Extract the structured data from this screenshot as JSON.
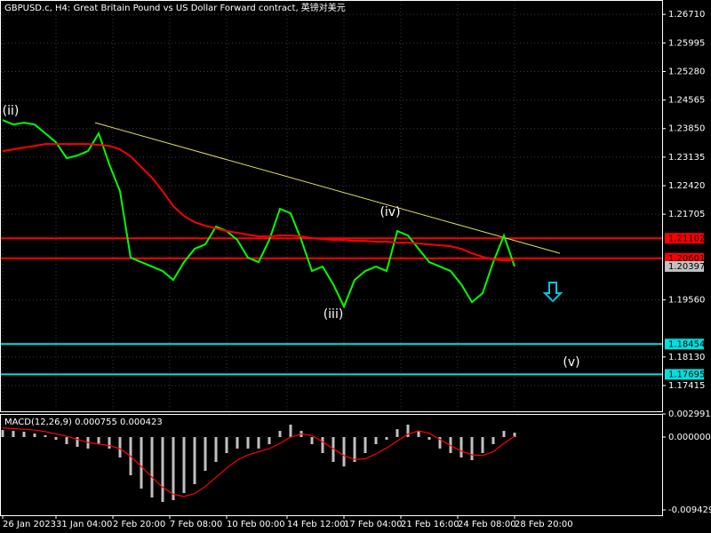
{
  "chart_data": [
    {
      "type": "line",
      "title": "GBPUSD.c, H4:  Great Britain Pound vs US Dollar Forward contract, 英镑对美元",
      "x": [
        0,
        3,
        6,
        9,
        12,
        15,
        18,
        21,
        24,
        27,
        30,
        33,
        36,
        39,
        42,
        45,
        48,
        51,
        54,
        57,
        60,
        63,
        66,
        69,
        72,
        75,
        78,
        81,
        84,
        87,
        90,
        93,
        96,
        99,
        102,
        105,
        108,
        111,
        114,
        117,
        120,
        123,
        126,
        129,
        132,
        135,
        138,
        141,
        144
      ],
      "series": [
        {
          "color": "#00ff00",
          "values": [
            1.24063,
            1.23952,
            1.23997,
            1.23952,
            1.2373,
            1.23507,
            1.23107,
            1.23174,
            1.23285,
            1.2373,
            1.22951,
            1.22284,
            1.20616,
            1.20505,
            1.20394,
            1.20283,
            1.2006,
            1.20505,
            1.20839,
            1.2095,
            1.21395,
            1.21283,
            1.21061,
            1.20616,
            1.20505,
            1.21061,
            1.21839,
            1.21728,
            1.21061,
            1.20283,
            1.20394,
            1.19949,
            1.19393,
            1.2006,
            1.20283,
            1.20394,
            1.20283,
            1.21283,
            1.21172,
            1.20839,
            1.20505,
            1.20394,
            1.20283,
            1.19949,
            1.19504,
            1.19727,
            1.20505,
            1.21172,
            1.20394
          ]
        },
        {
          "color": "#ff0000",
          "values": [
            1.23285,
            1.2333,
            1.23374,
            1.23418,
            1.23463,
            1.23463,
            1.23463,
            1.23463,
            1.23463,
            1.23441,
            1.23418,
            1.2333,
            1.23152,
            1.22885,
            1.22618,
            1.22284,
            1.21906,
            1.21662,
            1.21506,
            1.21417,
            1.2135,
            1.21283,
            1.21239,
            1.21194,
            1.2115,
            1.2115,
            1.21172,
            1.21172,
            1.2115,
            1.21106,
            1.21083,
            1.21061,
            1.21061,
            1.21039,
            1.21039,
            1.21017,
            1.21017,
            1.20994,
            1.20994,
            1.20972,
            1.2095,
            1.20928,
            1.20905,
            1.20839,
            1.20727,
            1.20638,
            1.20572,
            1.2055,
            1.2055
          ]
        }
      ],
      "trendline": {
        "x": [
          26,
          156.75
        ],
        "values": [
          1.23997,
          1.20727
        ],
        "color": "#e0e060"
      },
      "hlines": [
        {
          "value": 1.21102,
          "label": "1.21102",
          "color": "#ff0000"
        },
        {
          "value": 1.20601,
          "label": "1.20601",
          "color": "#ff0000"
        },
        {
          "value": 1.18454,
          "label": "1.18454",
          "color": "#00e0e0"
        },
        {
          "value": 1.17695,
          "label": "1.17695",
          "color": "#00e0e0"
        }
      ],
      "bid": {
        "value": 1.20397,
        "label": "1.20397",
        "color": "#c0c0c0"
      },
      "annotations": [
        {
          "text": "(ii)",
          "x": 2.25,
          "y": 1.24286
        },
        {
          "text": "(iii)",
          "x": 93,
          "y": 1.19193
        },
        {
          "text": "(iv)",
          "x": 109,
          "y": 1.2175
        },
        {
          "text": "(v)",
          "x": 160,
          "y": 1.17992
        }
      ],
      "xlim": [
        0,
        185.5
      ],
      "ylim": [
        1.1677,
        1.2707
      ],
      "yticks": [
        {
          "value": 1.2671,
          "label": "1.26710"
        },
        {
          "value": 1.25995,
          "label": "1.25995"
        },
        {
          "value": 1.2528,
          "label": "1.25280"
        },
        {
          "value": 1.24565,
          "label": "1.24565"
        },
        {
          "value": 1.2385,
          "label": "1.23850"
        },
        {
          "value": 1.23135,
          "label": "1.23135"
        },
        {
          "value": 1.2242,
          "label": "1.22420"
        },
        {
          "value": 1.21705,
          "label": "1.21705"
        },
        {
          "value": 1.1956,
          "label": "1.19560"
        },
        {
          "value": 1.1813,
          "label": "1.18130"
        },
        {
          "value": 1.17415,
          "label": "1.17415"
        }
      ],
      "xticks": [
        {
          "value": 0,
          "label": "26 Jan 2023"
        },
        {
          "value": 15,
          "label": "31 Jan 04:00"
        },
        {
          "value": 31,
          "label": "2 Feb 20:00"
        },
        {
          "value": 47,
          "label": "7 Feb 08:00"
        },
        {
          "value": 63,
          "label": "10 Feb 00:00"
        },
        {
          "value": 80,
          "label": "14 Feb 12:00"
        },
        {
          "value": 96,
          "label": "17 Feb 04:00"
        },
        {
          "value": 112,
          "label": "21 Feb 16:00"
        },
        {
          "value": 128,
          "label": "24 Feb 08:00"
        },
        {
          "value": 144,
          "label": "28 Feb 20:00"
        }
      ],
      "grid": true
    },
    {
      "type": "bar",
      "title": "MACD(12,26,9) 0.000755 0.000423",
      "x": [
        0,
        3,
        6,
        9,
        12,
        15,
        18,
        21,
        24,
        27,
        30,
        33,
        36,
        39,
        42,
        45,
        48,
        51,
        54,
        57,
        60,
        63,
        66,
        69,
        72,
        75,
        78,
        81,
        84,
        87,
        90,
        93,
        96,
        99,
        102,
        105,
        108,
        111,
        114,
        117,
        120,
        123,
        126,
        129,
        132,
        135,
        138,
        141,
        144
      ],
      "series": [
        {
          "color": "#c0c0c0",
          "values": [
            0.00092,
            0.0008,
            0.00069,
            0.00046,
            0.00023,
            -0.00034,
            -0.00092,
            -0.00126,
            -0.00149,
            -0.00092,
            -0.00149,
            -0.00264,
            -0.00494,
            -0.00667,
            -0.00782,
            -0.0084,
            -0.00817,
            -0.00725,
            -0.0061,
            -0.00437,
            -0.00322,
            -0.00207,
            -0.00149,
            -0.00149,
            -0.00149,
            -0.00092,
            0.0008,
            0.00161,
            0.0008,
            -0.00092,
            -0.00207,
            -0.00322,
            -0.0038,
            -0.00322,
            -0.00207,
            -0.00092,
            -0.00034,
            0.00103,
            0.00161,
            0.0008,
            -0.00034,
            -0.00149,
            -0.00207,
            -0.00264,
            -0.00299,
            -0.00207,
            -0.00092,
            0.0008,
            0.00057
          ]
        },
        {
          "color": "#ff0000",
          "values": [
            0.0012,
            0.0011,
            0.001,
            0.0009,
            0.0007,
            0.0004,
            0.0001,
            -0.0003,
            -0.0007,
            -0.0009,
            -0.0011,
            -0.0015,
            -0.0025,
            -0.0038,
            -0.0052,
            -0.0065,
            -0.0074,
            -0.0077,
            -0.0073,
            -0.0064,
            -0.0052,
            -0.004,
            -0.003,
            -0.0023,
            -0.0019,
            -0.0015,
            -0.0008,
            0.0,
            0.0004,
            0.0002,
            -0.0006,
            -0.0015,
            -0.0024,
            -0.0029,
            -0.0028,
            -0.0022,
            -0.0014,
            -0.0005,
            0.0004,
            0.0008,
            0.0005,
            -0.0003,
            -0.0011,
            -0.0018,
            -0.0023,
            -0.0024,
            -0.0019,
            -0.0008,
            0.0001
          ]
        }
      ],
      "xlim": [
        0,
        185.5
      ],
      "ylim": [
        -0.009429,
        0.002991
      ],
      "yticks": [
        {
          "value": 0.002991,
          "label": "0.002991"
        },
        {
          "value": 0,
          "label": "0.000000"
        },
        {
          "value": -0.009429,
          "label": "-0.009429"
        }
      ]
    }
  ]
}
